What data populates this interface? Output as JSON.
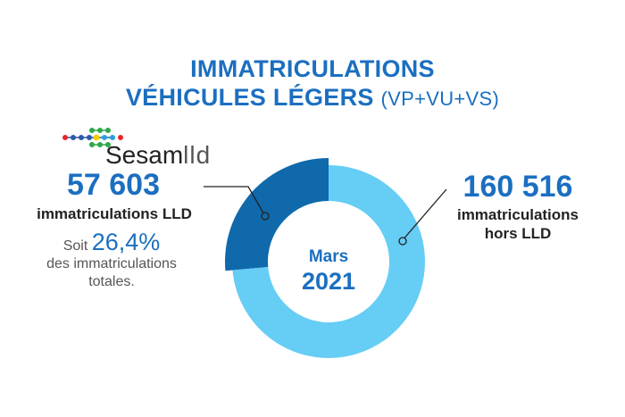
{
  "title": {
    "line1": "IMMATRICULATIONS",
    "line2": "VÉHICULES LÉGERS",
    "line2_sub": "(VP+VU+VS)"
  },
  "logo": {
    "text_main": "Sesam",
    "text_suffix": "lld"
  },
  "lld": {
    "value": "57 603",
    "label": "immatriculations LLD",
    "soit": "Soit",
    "percent": "26,4%",
    "desc": "des immatriculations totales."
  },
  "hors_lld": {
    "value": "160 516",
    "label_line1": "immatriculations",
    "label_line2": "hors LLD"
  },
  "center": {
    "month": "Mars",
    "year": "2021"
  },
  "colors": {
    "lld": "#0f69ab",
    "hors": "#66cdf5",
    "title": "#1b6fc0"
  },
  "chart_data": {
    "type": "pie",
    "variant": "donut",
    "title": "Immatriculations véhicules légers (VP+VU+VS) — Mars 2021",
    "categories": [
      "immatriculations LLD",
      "immatriculations hors LLD"
    ],
    "values": [
      57603,
      160516
    ],
    "percent_labels": [
      "26,4%",
      ""
    ]
  }
}
